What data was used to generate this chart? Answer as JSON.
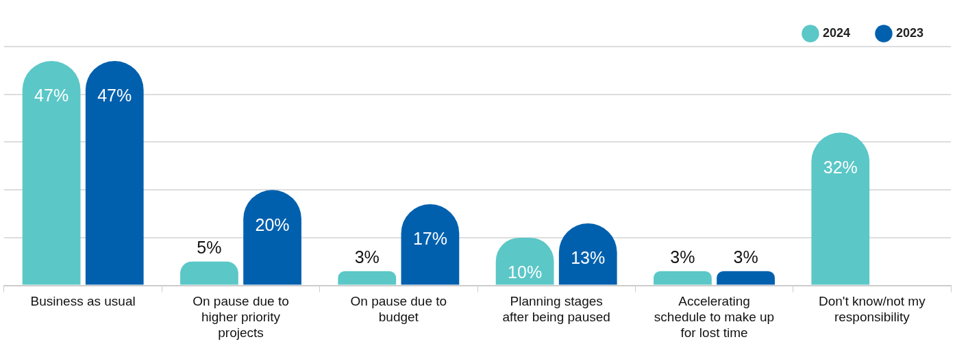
{
  "chart_data": {
    "type": "bar",
    "categories": [
      "Business as usual",
      "On pause due to higher priority projects",
      "On pause due to budget",
      "Planning stages after being paused",
      "Accelerating schedule to make up for lost time",
      "Don't know/not my responsibility"
    ],
    "series": [
      {
        "name": "2024",
        "color": "#5bc7c7",
        "values": [
          47,
          5,
          3,
          10,
          3,
          32
        ],
        "value_labels": [
          "47%",
          "5%",
          "3%",
          "10%",
          "3%",
          "32%"
        ]
      },
      {
        "name": "2023",
        "color": "#0060ae",
        "values": [
          47,
          20,
          17,
          13,
          3,
          null
        ],
        "value_labels": [
          "47%",
          "20%",
          "17%",
          "13%",
          "3%",
          null
        ]
      }
    ],
    "tick_labels": "x",
    "grid": "y",
    "legend": "top right"
  }
}
